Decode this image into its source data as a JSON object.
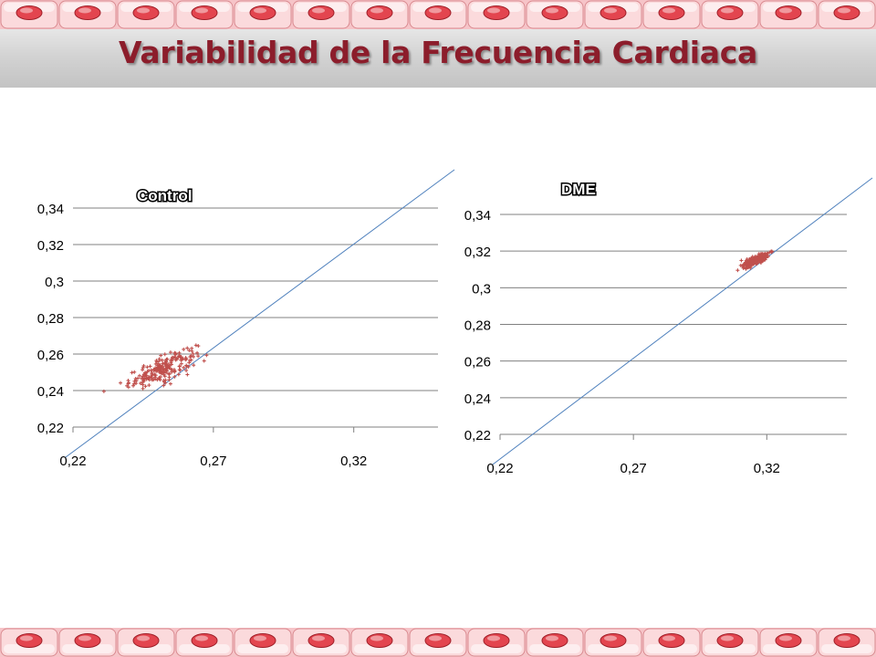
{
  "title": "Variabilidad de la Frecuencia Cardiaca",
  "colors": {
    "title": "#8c1d2b",
    "cell": "#e3454f",
    "cell_light": "#fbdadc",
    "marker": "#c0504d",
    "identity_line": "#4f81bd",
    "grid": "#808080"
  },
  "chart_data": [
    {
      "type": "scatter",
      "title": "Control",
      "xlabel": "",
      "ylabel": "",
      "xlim": [
        0.22,
        0.35
      ],
      "ylim": [
        0.22,
        0.34
      ],
      "x_ticks": [
        "0,22",
        "0,27",
        "0,32"
      ],
      "y_ticks": [
        "0,22",
        "0,24",
        "0,26",
        "0,28",
        "0,3",
        "0,32",
        "0,34"
      ],
      "grid": "horizontal",
      "identity_line": true,
      "cluster": {
        "center_x": 0.252,
        "center_y": 0.252,
        "spread_x": 0.006,
        "spread_y": 0.006,
        "count": 220,
        "x_min": 0.229,
        "x_max": 0.268
      }
    },
    {
      "type": "scatter",
      "title": "DME",
      "xlabel": "",
      "ylabel": "",
      "xlim": [
        0.22,
        0.35
      ],
      "ylim": [
        0.22,
        0.34
      ],
      "x_ticks": [
        "0,22",
        "0,27",
        "0,32"
      ],
      "y_ticks": [
        "0,22",
        "0,24",
        "0,26",
        "0,28",
        "0,3",
        "0,32",
        "0,34"
      ],
      "grid": "horizontal",
      "identity_line": true,
      "cluster": {
        "center_x": 0.316,
        "center_y": 0.315,
        "spread_x": 0.0025,
        "spread_y": 0.0022,
        "count": 200,
        "x_min": 0.308,
        "x_max": 0.324
      }
    }
  ]
}
